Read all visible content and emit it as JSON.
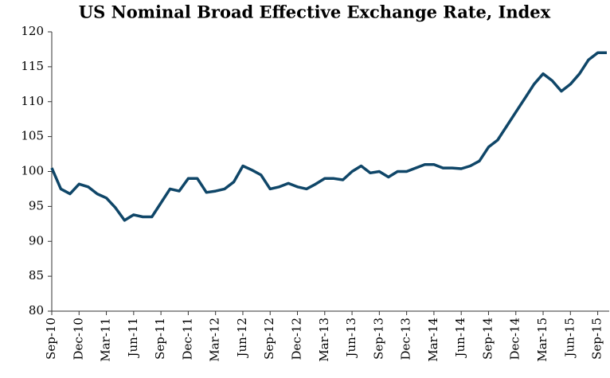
{
  "chart_data": {
    "type": "line",
    "title": "US Nominal Broad Effective Exchange Rate, Index",
    "x": [
      "Sep-10",
      "Oct-10",
      "Nov-10",
      "Dec-10",
      "Jan-11",
      "Feb-11",
      "Mar-11",
      "Apr-11",
      "May-11",
      "Jun-11",
      "Jul-11",
      "Aug-11",
      "Sep-11",
      "Oct-11",
      "Nov-11",
      "Dec-11",
      "Jan-12",
      "Feb-12",
      "Mar-12",
      "Apr-12",
      "May-12",
      "Jun-12",
      "Jul-12",
      "Aug-12",
      "Sep-12",
      "Oct-12",
      "Nov-12",
      "Dec-12",
      "Jan-13",
      "Feb-13",
      "Mar-13",
      "Apr-13",
      "May-13",
      "Jun-13",
      "Jul-13",
      "Aug-13",
      "Sep-13",
      "Oct-13",
      "Nov-13",
      "Dec-13",
      "Jan-14",
      "Feb-14",
      "Mar-14",
      "Apr-14",
      "May-14",
      "Jun-14",
      "Jul-14",
      "Aug-14",
      "Sep-14",
      "Oct-14",
      "Nov-14",
      "Dec-14",
      "Jan-15",
      "Feb-15",
      "Mar-15",
      "Apr-15",
      "May-15",
      "Jun-15",
      "Jul-15",
      "Aug-15",
      "Sep-15",
      "Oct-15"
    ],
    "values": [
      100.5,
      97.5,
      96.8,
      98.2,
      97.8,
      96.8,
      96.2,
      94.8,
      93.0,
      93.8,
      93.5,
      93.5,
      95.5,
      97.5,
      97.2,
      99.0,
      99.0,
      97.0,
      97.2,
      97.5,
      98.5,
      100.8,
      100.2,
      99.5,
      97.5,
      97.8,
      98.3,
      97.8,
      97.5,
      98.2,
      99.0,
      99.0,
      98.8,
      100.0,
      100.8,
      99.8,
      100.0,
      99.2,
      100.0,
      100.0,
      100.5,
      101.0,
      101.0,
      100.5,
      100.5,
      100.4,
      100.8,
      101.5,
      103.5,
      104.5,
      106.5,
      108.5,
      110.5,
      112.5,
      114.0,
      113.0,
      111.5,
      112.5,
      114.0,
      116.0,
      117.0,
      117.0
    ],
    "color": "#0f4668",
    "xlim": [
      "Sep-10",
      "Oct-15"
    ],
    "xticks": [
      "Sep-10",
      "Dec-10",
      "Mar-11",
      "Jun-11",
      "Sep-11",
      "Dec-11",
      "Mar-12",
      "Jun-12",
      "Sep-12",
      "Dec-12",
      "Mar-13",
      "Jun-13",
      "Sep-13",
      "Dec-13",
      "Mar-14",
      "Jun-14",
      "Sep-14",
      "Dec-14",
      "Mar-15",
      "Jun-15",
      "Sep-15"
    ],
    "ylim": [
      80,
      120
    ],
    "yticks": [
      80,
      85,
      90,
      95,
      100,
      105,
      110,
      115,
      120
    ],
    "grid": false
  }
}
